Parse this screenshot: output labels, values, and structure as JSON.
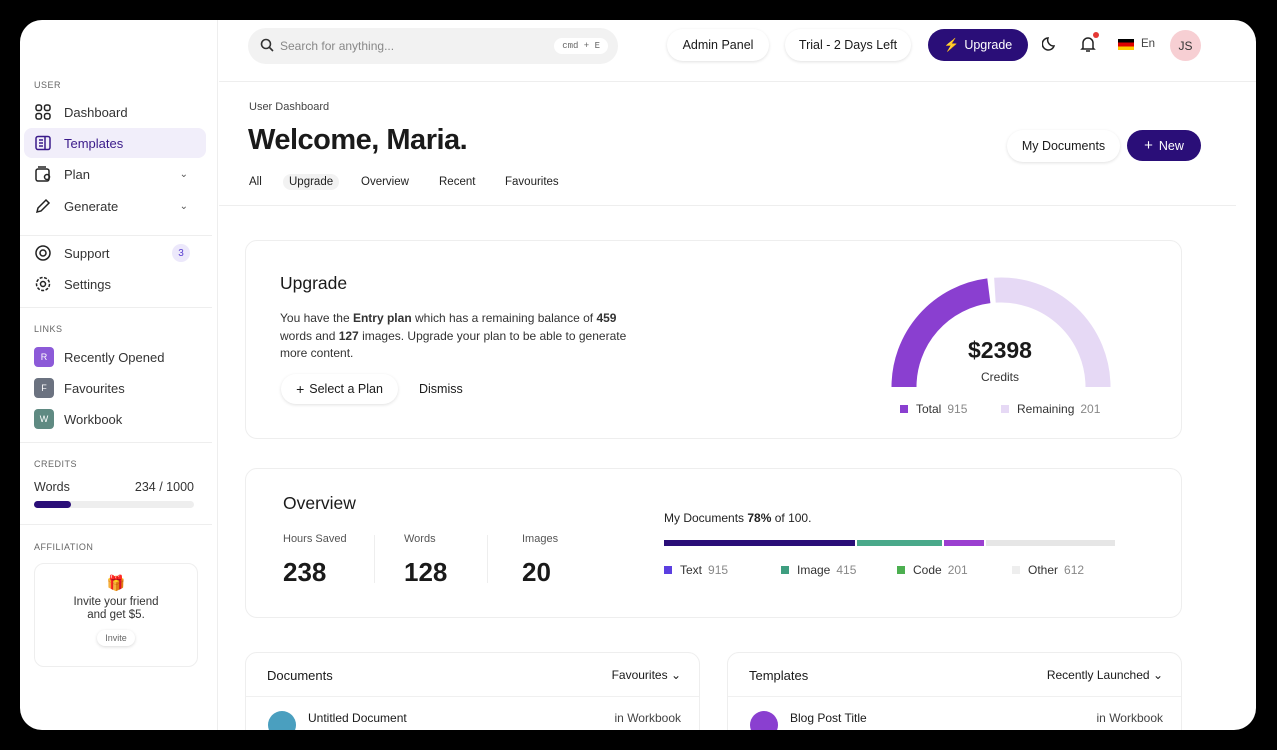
{
  "sidebar": {
    "user_label": "USER",
    "items": [
      {
        "label": "Dashboard"
      },
      {
        "label": "Templates"
      },
      {
        "label": "Plan"
      },
      {
        "label": "Generate"
      },
      {
        "label": "Support",
        "badge": "3"
      },
      {
        "label": "Settings"
      }
    ],
    "links_label": "LINKS",
    "links": [
      {
        "initial": "R",
        "label": "Recently Opened",
        "color": "#8c5ad8"
      },
      {
        "initial": "F",
        "label": "Favourites",
        "color": "#6b7280"
      },
      {
        "initial": "W",
        "label": "Workbook",
        "color": "#5f8a82"
      }
    ],
    "credits_label": "CREDITS",
    "credits_name": "Words",
    "credits_value": "234 / 1000",
    "credits_fraction": 0.234,
    "affiliation_label": "AFFILIATION",
    "invite_text": "Invite your friend and get $5.",
    "invite_button": "Invite"
  },
  "header": {
    "search_placeholder": "Search for anything...",
    "shortcut": "cmd + E",
    "admin": "Admin Panel",
    "trial": "Trial - 2 Days Left",
    "upgrade": "Upgrade",
    "lang": "En",
    "avatar": "JS"
  },
  "page": {
    "breadcrumb": "User Dashboard",
    "title": "Welcome, Maria.",
    "my_documents": "My Documents",
    "new": "New",
    "tabs": [
      "All",
      "Upgrade",
      "Overview",
      "Recent",
      "Favourites"
    ],
    "active_tab": "Upgrade"
  },
  "upgrade": {
    "title": "Upgrade",
    "t1": "You have the ",
    "plan": "Entry plan",
    "t2": " which has a remaining balance of ",
    "words": "459",
    "t3": " words and ",
    "images": "127",
    "t4": " images. Upgrade your plan to be able to generate more content.",
    "select": "Select a Plan",
    "dismiss": "Dismiss",
    "gauge_value": "$2398",
    "gauge_label": "Credits",
    "gauge_fill_percent": 47,
    "total_label": "Total",
    "total": "915",
    "remaining_label": "Remaining",
    "remaining": "201",
    "colors": {
      "total": "#8a3fd0",
      "remaining": "#e6d9f5"
    }
  },
  "overview": {
    "title": "Overview",
    "stats": [
      {
        "label": "Hours Saved",
        "value": "238"
      },
      {
        "label": "Words",
        "value": "128"
      },
      {
        "label": "Images",
        "value": "20"
      }
    ],
    "docs_prefix": "My Documents ",
    "docs_pct": "78%",
    "docs_suffix": " of 100.",
    "segments": [
      {
        "label": "Text",
        "value": "915",
        "pct": 43,
        "color": "#2a0e78",
        "legend": "#5b3fe0"
      },
      {
        "label": "Image",
        "value": "415",
        "pct": 19,
        "color": "#4aa98a",
        "legend": "#3e9e80"
      },
      {
        "label": "Code",
        "value": "201",
        "pct": 9,
        "color": "#9b3fd0",
        "legend": "#4caf50"
      },
      {
        "label": "Other",
        "value": "612",
        "pct": 29,
        "color": "#e6e6e6",
        "legend": "#eeeeee"
      }
    ]
  },
  "documents": {
    "title": "Documents",
    "filter": "Favourites",
    "row": "Untitled Document",
    "where": "in Workbook"
  },
  "templates": {
    "title": "Templates",
    "filter": "Recently Launched",
    "row": "Blog Post Title",
    "where": "in Workbook"
  }
}
